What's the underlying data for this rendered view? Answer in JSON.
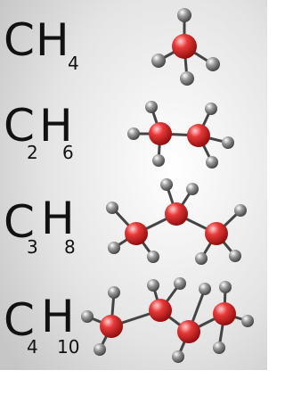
{
  "formulas": [
    {
      "atoms": [
        {
          "symbol": "C"
        },
        {
          "symbol": "H",
          "count": "4"
        }
      ]
    },
    {
      "atoms": [
        {
          "symbol": "C",
          "count": "2"
        },
        {
          "symbol": "H",
          "count": "6"
        }
      ]
    },
    {
      "atoms": [
        {
          "symbol": "C",
          "count": "3"
        },
        {
          "symbol": "H",
          "count": "8"
        }
      ]
    },
    {
      "atoms": [
        {
          "symbol": "C",
          "count": "4"
        },
        {
          "symbol": "H",
          "count": "10"
        }
      ]
    }
  ]
}
